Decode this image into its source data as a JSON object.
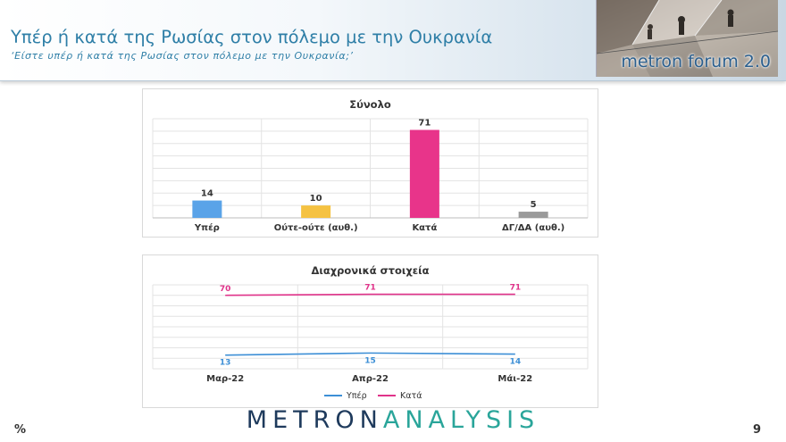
{
  "header": {
    "title": "Υπέρ ή κατά της Ρωσίας στον πόλεμο με την Ουκρανία",
    "subtitle": "‘Είστε υπέρ ή κατά της Ρωσίας στον πόλεμο με την Ουκρανία;’",
    "logo_text": "metron forum 2.0"
  },
  "footer": {
    "unit": "%",
    "page_number": "9",
    "brand_part1": "METRON",
    "brand_part2": "ANALYSIS"
  },
  "colors": {
    "title": "#2f7fa7",
    "yper": "#5aa3e8",
    "oute": "#f5c242",
    "kata": "#e8348a",
    "dg": "#9a9a9a",
    "line_yper": "#3d8fd6",
    "line_kata": "#e0338a"
  },
  "chart_data": [
    {
      "type": "bar",
      "title": "Σύνολο",
      "categories": [
        "Υπέρ",
        "Ούτε-ούτε (αυθ.)",
        "Κατά",
        "ΔΓ/ΔΑ (αυθ.)"
      ],
      "values": [
        14,
        10,
        71,
        5
      ],
      "bar_colors": [
        "#5aa3e8",
        "#f5c242",
        "#e8348a",
        "#9a9a9a"
      ],
      "ylim": [
        0,
        80
      ],
      "grid": true
    },
    {
      "type": "line",
      "title": "Διαχρονικά στοιχεία",
      "categories": [
        "Μαρ-22",
        "Απρ-22",
        "Μάι-22"
      ],
      "series": [
        {
          "name": "Υπέρ",
          "values": [
            13,
            15,
            14
          ],
          "color": "#3d8fd6"
        },
        {
          "name": "Κατά",
          "values": [
            70,
            71,
            71
          ],
          "color": "#e0338a"
        }
      ],
      "ylim": [
        0,
        80
      ],
      "grid": true,
      "legend": "bottom"
    }
  ]
}
